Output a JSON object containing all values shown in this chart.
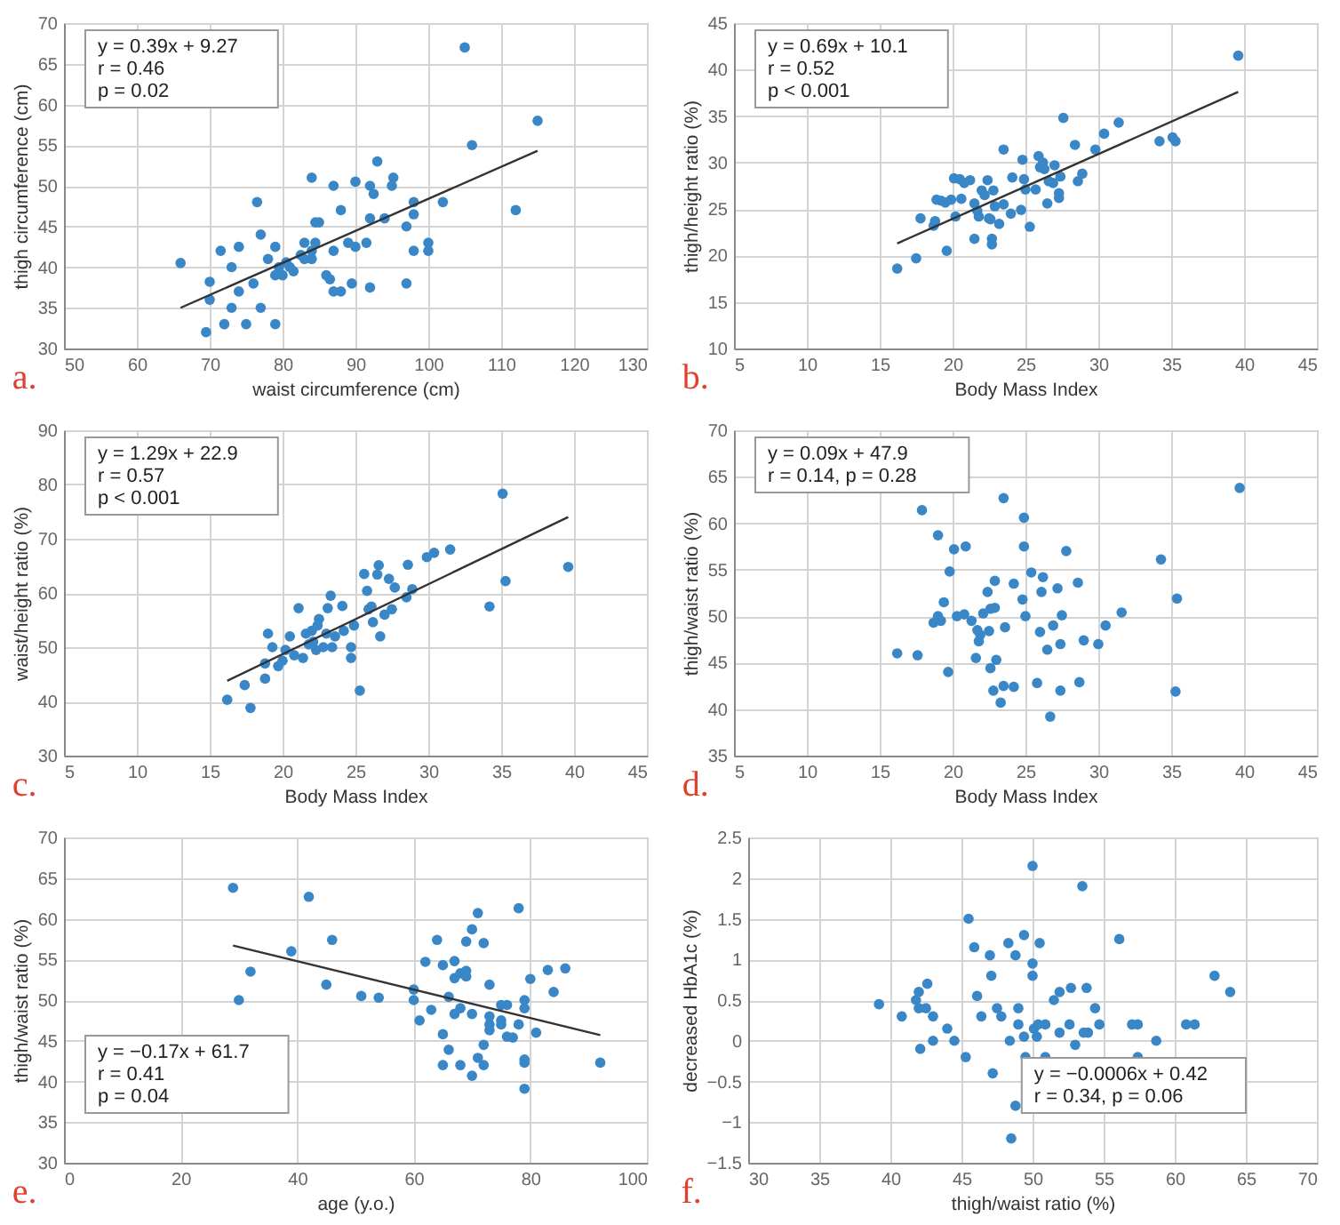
{
  "chart_data": [
    {
      "type": "scatter",
      "title": "a.",
      "xlabel": "waist circumference (cm)",
      "ylabel": "thigh circumference (cm)",
      "xlim": [
        50,
        130
      ],
      "xticks": [
        50,
        60,
        70,
        80,
        90,
        100,
        110,
        120,
        130
      ],
      "ylim": [
        30,
        70
      ],
      "yticks": [
        30,
        35,
        40,
        45,
        50,
        55,
        60,
        65,
        70
      ],
      "grid": true,
      "marker": "circle",
      "annotations": [
        "y = 0.39x + 9.27",
        "r = 0.46",
        "p = 0.02"
      ],
      "series": [
        {
          "color": "#3a87c8",
          "x": [
            66,
            69.5,
            70,
            70,
            71.5,
            72,
            73,
            73,
            74,
            74,
            75,
            76,
            76.5,
            77,
            77,
            78,
            79,
            79,
            79,
            79.5,
            80,
            80.5,
            81,
            81.5,
            82.5,
            83,
            83,
            84,
            84,
            84,
            84.5,
            84.5,
            85,
            86,
            86.5,
            87,
            87,
            87,
            88,
            88,
            89,
            89.5,
            90,
            90,
            91.5,
            92,
            92,
            92,
            92.5,
            93,
            94,
            95,
            95.2,
            97,
            97,
            98,
            98,
            98,
            100,
            100,
            102,
            105,
            106,
            112,
            115
          ],
          "values": [
            40.5,
            32,
            38.2,
            36,
            42,
            33,
            35,
            40,
            42.5,
            37,
            33,
            38,
            48,
            44,
            35,
            41,
            42.5,
            39,
            33,
            40,
            39,
            40.6,
            40,
            39.5,
            41.5,
            43,
            41,
            51,
            41,
            42,
            43,
            45.5,
            45.5,
            39,
            38.5,
            50,
            42,
            37,
            47,
            37,
            43,
            38,
            50.5,
            42.5,
            43,
            50,
            46,
            37.5,
            49,
            53,
            46,
            50,
            51,
            45,
            38,
            48,
            46.5,
            42,
            43,
            42,
            48,
            67,
            55,
            47,
            58
          ]
        },
        {
          "type": "line",
          "color": "#333333",
          "marker": "none",
          "x": [
            66,
            115
          ],
          "values": [
            35,
            54.3
          ]
        }
      ]
    },
    {
      "type": "scatter",
      "title": "b.",
      "xlabel": "Body Mass Index",
      "ylabel": "thigh/height ratio (%)",
      "xlim": [
        5,
        45
      ],
      "xticks": [
        5,
        10,
        15,
        20,
        25,
        30,
        35,
        40,
        45
      ],
      "ylim": [
        10,
        45
      ],
      "yticks": [
        10,
        15,
        20,
        25,
        30,
        35,
        40,
        45
      ],
      "grid": true,
      "marker": "circle",
      "annotations": [
        "y = 0.69x + 10.1",
        "r = 0.52",
        "p < 0.001"
      ],
      "series": [
        {
          "color": "#3a87c8",
          "x": [
            16.2,
            17.5,
            17.8,
            18.7,
            18.8,
            18.9,
            19.2,
            19.5,
            19.6,
            19.9,
            20.1,
            20.2,
            20.5,
            20.6,
            20.8,
            21.2,
            21.5,
            21.5,
            21.7,
            21.8,
            22,
            22.2,
            22.4,
            22.5,
            22.6,
            22.7,
            22.7,
            22.8,
            22.9,
            23.2,
            23.5,
            23.5,
            24,
            24.1,
            24.7,
            24.8,
            24.9,
            25,
            25.3,
            25.7,
            25.9,
            26,
            26.2,
            26.3,
            26.5,
            26.6,
            26.9,
            27,
            27.3,
            27.3,
            27.4,
            27.6,
            28.4,
            28.6,
            28.9,
            29.8,
            30.4,
            31.4,
            34.2,
            35.1,
            35.3,
            39.6
          ],
          "values": [
            18.6,
            19.7,
            24,
            23.2,
            23.7,
            26,
            25.9,
            25.7,
            20.5,
            26,
            28.3,
            24.2,
            28.2,
            26.1,
            27.8,
            28.1,
            21.8,
            25.6,
            24.8,
            24.2,
            27,
            26.5,
            28.1,
            24,
            23.9,
            21.2,
            21.8,
            27,
            25.3,
            23.4,
            31.4,
            25.5,
            24.5,
            28.4,
            24.9,
            30.3,
            28.2,
            27.1,
            23.1,
            27.1,
            30.7,
            29.5,
            30,
            29.3,
            25.6,
            28,
            27.8,
            29.7,
            26.2,
            26.7,
            28.5,
            34.8,
            31.9,
            28,
            28.8,
            31.4,
            33.1,
            34.3,
            32.3,
            32.7,
            32.3,
            41.5
          ]
        },
        {
          "type": "line",
          "color": "#333333",
          "marker": "none",
          "x": [
            16.2,
            39.6
          ],
          "values": [
            21.3,
            37.6
          ]
        }
      ]
    },
    {
      "type": "scatter",
      "title": "c.",
      "xlabel": "Body Mass Index",
      "ylabel": "waist/height ratio (%)",
      "xlim": [
        5,
        45
      ],
      "xticks": [
        5,
        10,
        15,
        20,
        25,
        30,
        35,
        40,
        45
      ],
      "ylim": [
        30,
        90
      ],
      "yticks": [
        30,
        40,
        50,
        60,
        70,
        80,
        90
      ],
      "grid": true,
      "marker": "circle",
      "annotations": [
        "y = 1.29x + 22.9",
        "r = 0.57",
        "p < 0.001"
      ],
      "series": [
        {
          "color": "#3a87c8",
          "x": [
            16.2,
            17.4,
            17.8,
            18.8,
            18.8,
            19,
            19.3,
            19.7,
            20,
            20.2,
            20.5,
            20.8,
            21.1,
            21.4,
            21.6,
            21.8,
            22,
            22.1,
            22.3,
            22.4,
            22.5,
            22.8,
            23,
            23.1,
            23.3,
            23.4,
            23.6,
            24.1,
            24.2,
            24.7,
            24.7,
            24.9,
            25.3,
            25.6,
            25.8,
            25.9,
            26.1,
            26.2,
            26.5,
            26.6,
            26.7,
            27,
            27.3,
            27.5,
            27.7,
            28.5,
            28.6,
            28.9,
            29.9,
            30.4,
            31.5,
            34.2,
            35.1,
            35.3,
            39.6
          ],
          "values": [
            40.3,
            43,
            38.8,
            47,
            44.2,
            52.5,
            50,
            46.5,
            47.5,
            49.5,
            52,
            48.5,
            57.2,
            48,
            52.5,
            50.5,
            53,
            51,
            49.5,
            54,
            55.2,
            50,
            52.5,
            57.2,
            59.5,
            50,
            52,
            57.6,
            53,
            50,
            48,
            54,
            42,
            63.5,
            60.4,
            57,
            57.5,
            54.6,
            63.4,
            65.1,
            52,
            56,
            62.6,
            57,
            61,
            59.2,
            65.2,
            60.7,
            66.6,
            67.4,
            68,
            57.5,
            78.3,
            62.2,
            64.8
          ]
        },
        {
          "type": "line",
          "color": "#333333",
          "marker": "none",
          "x": [
            16.2,
            39.6
          ],
          "values": [
            43.8,
            74
          ]
        }
      ]
    },
    {
      "type": "scatter",
      "title": "d.",
      "xlabel": "Body Mass Index",
      "ylabel": "thigh/waist ratio (%)",
      "xlim": [
        5,
        45
      ],
      "xticks": [
        5,
        10,
        15,
        20,
        25,
        30,
        35,
        40,
        45
      ],
      "ylim": [
        35,
        70
      ],
      "yticks": [
        35,
        40,
        45,
        50,
        55,
        60,
        65,
        70
      ],
      "grid": true,
      "marker": "circle",
      "annotations": [
        "y = 0.09x + 47.9",
        "r = 0.14, p = 0.28"
      ],
      "series": [
        {
          "color": "#3a87c8",
          "x": [
            16.2,
            17.6,
            17.9,
            18.7,
            19,
            19,
            19.2,
            19.4,
            19.7,
            19.8,
            20.1,
            20.3,
            20.8,
            20.9,
            21.3,
            21.6,
            21.7,
            21.8,
            21.9,
            22.1,
            22.4,
            22.5,
            22.6,
            22.6,
            22.8,
            22.9,
            22.9,
            23,
            23.3,
            23.5,
            23.5,
            23.6,
            24.2,
            24.2,
            24.8,
            24.9,
            24.9,
            25,
            25.4,
            25.8,
            26,
            26.1,
            26.2,
            26.5,
            26.7,
            26.9,
            27.2,
            27.4,
            27.4,
            27.5,
            27.8,
            28.6,
            28.7,
            29,
            30,
            30.5,
            31.6,
            34.3,
            35.3,
            35.4,
            39.7
          ],
          "values": [
            46,
            45.8,
            61.4,
            49.3,
            58.7,
            50,
            49.5,
            51.5,
            44,
            54.8,
            57.2,
            50,
            50.2,
            57.5,
            49.5,
            45.5,
            48.5,
            47.3,
            48,
            50.3,
            52.6,
            48.4,
            44.4,
            50.8,
            42,
            53.8,
            50.9,
            45.3,
            40.7,
            42.5,
            62.7,
            48.8,
            53.5,
            42.4,
            51.8,
            60.6,
            57.5,
            50,
            54.7,
            42.8,
            48.3,
            52.6,
            54.2,
            46.4,
            39.2,
            49,
            53,
            47,
            42,
            50.1,
            57,
            53.6,
            42.9,
            47.4,
            47,
            49,
            50.4,
            56.1,
            41.9,
            51.9,
            63.8
          ]
        }
      ]
    },
    {
      "type": "scatter",
      "title": "e.",
      "xlabel": "age (y.o.)",
      "ylabel": "thigh/waist ratio (%)",
      "xlim": [
        0,
        100
      ],
      "xticks": [
        0,
        20,
        40,
        60,
        80,
        100
      ],
      "ylim": [
        30,
        70
      ],
      "yticks": [
        30,
        35,
        40,
        45,
        50,
        55,
        60,
        65,
        70
      ],
      "grid": true,
      "marker": "circle",
      "annotations": [
        "y = −0.17x + 61.7",
        "r = 0.41",
        "p = 0.04"
      ],
      "series": [
        {
          "color": "#3a87c8",
          "x": [
            29,
            30,
            32,
            39,
            42,
            45,
            46,
            51,
            54,
            60,
            60,
            61,
            62,
            63,
            64,
            65,
            65,
            65,
            66,
            66,
            67,
            67,
            67,
            68,
            68,
            68,
            69,
            69,
            69,
            70,
            70,
            70,
            71,
            71,
            72,
            72,
            72,
            73,
            73,
            73,
            73,
            75,
            75,
            75,
            76,
            76,
            77,
            78,
            78,
            79,
            79,
            79,
            79,
            79,
            80,
            81,
            83,
            84,
            86,
            92
          ],
          "values": [
            63.8,
            50,
            53.5,
            56,
            62.7,
            51.9,
            57.4,
            50.5,
            50.3,
            51.3,
            50,
            47.5,
            54.7,
            48.8,
            57.4,
            54.3,
            45.8,
            42,
            43.9,
            50.4,
            54.8,
            52.7,
            48.3,
            53.3,
            49,
            42,
            57.2,
            53.6,
            52.9,
            58.7,
            48.3,
            40.7,
            60.7,
            42.9,
            57,
            44.5,
            42,
            51.9,
            48,
            47,
            46.3,
            49.4,
            47.5,
            47,
            49.4,
            45.5,
            45.4,
            61.3,
            47,
            50,
            49,
            42.7,
            42.3,
            39.1,
            52.6,
            46,
            53.7,
            51,
            53.9,
            42.3
          ]
        },
        {
          "type": "line",
          "color": "#333333",
          "marker": "none",
          "x": [
            29,
            92
          ],
          "values": [
            56.7,
            45.7
          ]
        }
      ]
    },
    {
      "type": "scatter",
      "title": "f.",
      "xlabel": "thigh/waist ratio (%)",
      "ylabel": "decreased HbA1c (%)",
      "xlim": [
        30,
        70
      ],
      "xticks": [
        30,
        35,
        40,
        45,
        50,
        55,
        60,
        65,
        70
      ],
      "ylim": [
        -1.5,
        2.5
      ],
      "yticks": [
        -1.5,
        -1,
        -0.5,
        0,
        0.5,
        1,
        1.5,
        2,
        2.5
      ],
      "grid": true,
      "marker": "circle",
      "annotations": [
        "y = −0.0006x + 0.42",
        "r = 0.34, p = 0.06"
      ],
      "series": [
        {
          "color": "#3a87c8",
          "x": [
            39.2,
            40.8,
            41.8,
            42,
            42,
            42.1,
            42.5,
            42.6,
            43,
            43,
            44,
            44.5,
            45.3,
            45.5,
            45.9,
            46.1,
            46.4,
            47,
            47.1,
            47.2,
            47.5,
            47.8,
            48.3,
            48.4,
            48.5,
            48.8,
            48.8,
            49,
            49,
            49.4,
            49.4,
            49.5,
            50,
            50,
            50,
            50.1,
            50.3,
            50.4,
            50.5,
            50.9,
            50.9,
            51.5,
            51.9,
            51.9,
            52.6,
            52.7,
            53,
            53.5,
            53.6,
            53.8,
            53.9,
            54.4,
            54.7,
            56.1,
            57,
            57.4,
            57.4,
            58.7,
            60.8,
            61.4,
            62.8,
            63.9
          ],
          "values": [
            0.45,
            0.3,
            0.5,
            0.6,
            0.4,
            -0.1,
            0.4,
            0.7,
            0.3,
            0,
            0.15,
            0,
            -0.2,
            1.5,
            1.15,
            0.55,
            0.3,
            1.05,
            0.8,
            -0.4,
            0.4,
            0.3,
            1.2,
            0,
            -1.2,
            1.05,
            -0.8,
            0.2,
            0.4,
            1.3,
            0.05,
            -0.2,
            2.15,
            0.95,
            0.8,
            0.15,
            0.05,
            0.2,
            1.2,
            0.2,
            -0.2,
            0.5,
            0.6,
            0.1,
            0.2,
            0.65,
            -0.05,
            1.9,
            0.1,
            0.65,
            0.1,
            0.4,
            0.2,
            1.25,
            0.2,
            0.2,
            -0.2,
            0,
            0.2,
            0.2,
            0.8,
            0.6
          ]
        }
      ]
    }
  ]
}
